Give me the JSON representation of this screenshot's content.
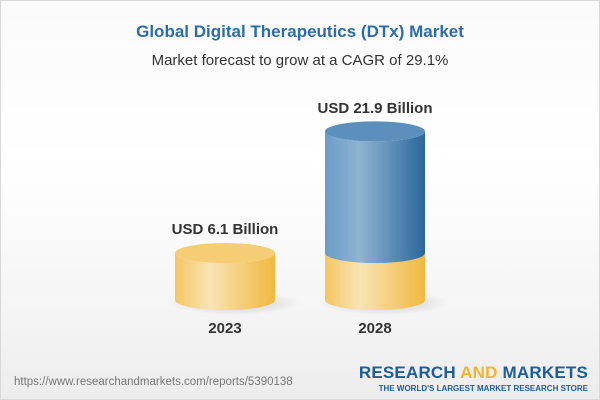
{
  "title": "Global Digital Therapeutics (DTx) Market",
  "subtitle": "Market forecast to grow at a CAGR of 29.1%",
  "chart_data": {
    "type": "bar",
    "style": "3d-cylinder",
    "categories": [
      "2023",
      "2028"
    ],
    "values": [
      6.1,
      21.9
    ],
    "data_labels": [
      "USD 6.1 Billion",
      "USD 21.9 Billion"
    ],
    "unit": "USD Billion",
    "colors": {
      "base": "#f2c35e",
      "growth": "#3f7db3"
    }
  },
  "footer": {
    "url": "https://www.researchandmarkets.com/reports/5390138",
    "logo_part1": "RESEARCH ",
    "logo_part2": "AND",
    "logo_part3": " MARKETS",
    "tagline": "THE WORLD'S LARGEST MARKET RESEARCH STORE"
  }
}
